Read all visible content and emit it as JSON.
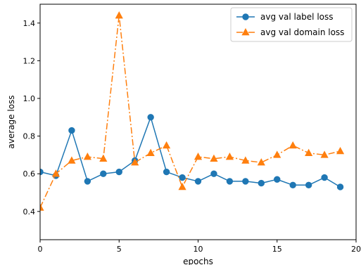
{
  "chart_data": {
    "type": "line",
    "xlabel": "epochs",
    "ylabel": "average loss",
    "xlim": [
      0,
      20
    ],
    "ylim": [
      0.25,
      1.5
    ],
    "xticks": [
      0,
      5,
      10,
      15,
      20
    ],
    "yticks": [
      0.4,
      0.6,
      0.8,
      1.0,
      1.2,
      1.4
    ],
    "xtick_labels": [
      "0",
      "5",
      "10",
      "15",
      "20"
    ],
    "ytick_labels": [
      "0.4",
      "0.6",
      "0.8",
      "1.0",
      "1.2",
      "1.4"
    ],
    "grid": false,
    "legend_position": "top-right",
    "x": [
      0,
      1,
      2,
      3,
      4,
      5,
      6,
      7,
      8,
      9,
      10,
      11,
      12,
      13,
      14,
      15,
      16,
      17,
      18,
      19
    ],
    "series": [
      {
        "name": "avg val label loss",
        "color": "#1f77b4",
        "marker": "circle",
        "line_style": "solid",
        "values": [
          0.61,
          0.59,
          0.83,
          0.56,
          0.6,
          0.61,
          0.67,
          0.9,
          0.61,
          0.58,
          0.56,
          0.6,
          0.56,
          0.56,
          0.55,
          0.57,
          0.54,
          0.54,
          0.58,
          0.53
        ]
      },
      {
        "name": "avg val domain loss",
        "color": "#ff7f0e",
        "marker": "triangle",
        "line_style": "dashdot",
        "values": [
          0.42,
          0.6,
          0.67,
          0.69,
          0.68,
          1.44,
          0.66,
          0.71,
          0.75,
          0.53,
          0.69,
          0.68,
          0.69,
          0.67,
          0.66,
          0.7,
          0.75,
          0.71,
          0.7,
          0.72
        ]
      }
    ]
  }
}
